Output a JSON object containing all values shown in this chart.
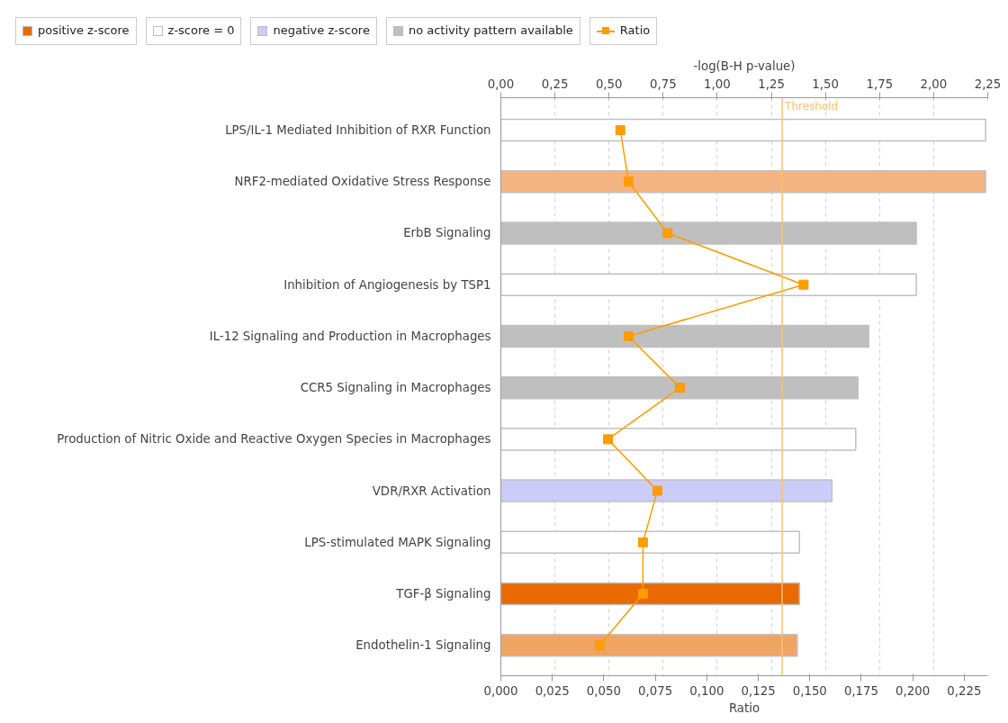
{
  "chart_data": {
    "type": "bar",
    "orientation": "horizontal",
    "categories": [
      "LPS/IL-1 Mediated Inhibition of RXR Function",
      "NRF2-mediated Oxidative Stress Response",
      "ErbB Signaling",
      "Inhibition of Angiogenesis by TSP1",
      "IL-12 Signaling and Production in Macrophages",
      "CCR5 Signaling in Macrophages",
      "Production of Nitric Oxide and Reactive Oxygen Species in Macrophages",
      "VDR/RXR Activation",
      "LPS-stimulated MAPK Signaling",
      "TGF-β Signaling",
      "Endothelin-1 Signaling"
    ],
    "xlabel": "Ratio",
    "x2label": "-log(B-H p-value)",
    "xlim": [
      0,
      0.2364
    ],
    "xticks": [
      {
        "value": 0,
        "label": "0,000"
      },
      {
        "value": 0.025,
        "label": "0,025"
      },
      {
        "value": 0.05,
        "label": "0,050"
      },
      {
        "value": 0.075,
        "label": "0,075"
      },
      {
        "value": 0.1,
        "label": "0,100"
      },
      {
        "value": 0.125,
        "label": "0,125"
      },
      {
        "value": 0.15,
        "label": "0,150"
      },
      {
        "value": 0.175,
        "label": "0,175"
      },
      {
        "value": 0.2,
        "label": "0,200"
      },
      {
        "value": 0.225,
        "label": "0,225"
      }
    ],
    "x2lim": [
      0,
      2.25
    ],
    "x2ticks": [
      {
        "value": 0,
        "label": "0,00"
      },
      {
        "value": 0.25,
        "label": "0,25"
      },
      {
        "value": 0.5,
        "label": "0,50"
      },
      {
        "value": 0.75,
        "label": "0,75"
      },
      {
        "value": 1,
        "label": "1,00"
      },
      {
        "value": 1.25,
        "label": "1,25"
      },
      {
        "value": 1.5,
        "label": "1,50"
      },
      {
        "value": 1.75,
        "label": "1,75"
      },
      {
        "value": 2,
        "label": "2,00"
      },
      {
        "value": 2.25,
        "label": "2,25"
      }
    ],
    "grid": "x2",
    "legend": "top",
    "series": [
      {
        "name": "positive z-score",
        "axis": "x2",
        "color": "#e86a00",
        "colors": [
          null,
          "#f4b482",
          null,
          null,
          null,
          null,
          null,
          null,
          null,
          "#e86a00",
          "#efa464"
        ],
        "values": [
          null,
          2.24,
          null,
          null,
          null,
          null,
          null,
          null,
          null,
          1.38,
          1.37
        ]
      },
      {
        "name": "z-score = 0",
        "axis": "x2",
        "color": "#ffffff",
        "values": [
          2.24,
          null,
          null,
          1.92,
          null,
          null,
          1.64,
          null,
          1.38,
          null,
          null
        ]
      },
      {
        "name": "negative z-score",
        "axis": "x2",
        "color": "#ccccf8",
        "values": [
          null,
          null,
          null,
          null,
          null,
          null,
          null,
          1.53,
          null,
          null,
          null
        ]
      },
      {
        "name": "no activity pattern available",
        "axis": "x2",
        "color": "#bfbfbf",
        "values": [
          null,
          null,
          1.92,
          null,
          1.7,
          1.65,
          null,
          null,
          null,
          null,
          null
        ]
      },
      {
        "name": "Ratio",
        "type": "line",
        "marker": "square",
        "color": "#ff9c00",
        "values": [
          0.058,
          0.062,
          0.081,
          0.147,
          0.062,
          0.087,
          0.052,
          0.076,
          0.069,
          0.069,
          0.048
        ]
      }
    ],
    "ref_lines": [
      {
        "axis": "x2",
        "value": 1.3,
        "label": "Threshold",
        "color": "#ffc070"
      }
    ]
  }
}
